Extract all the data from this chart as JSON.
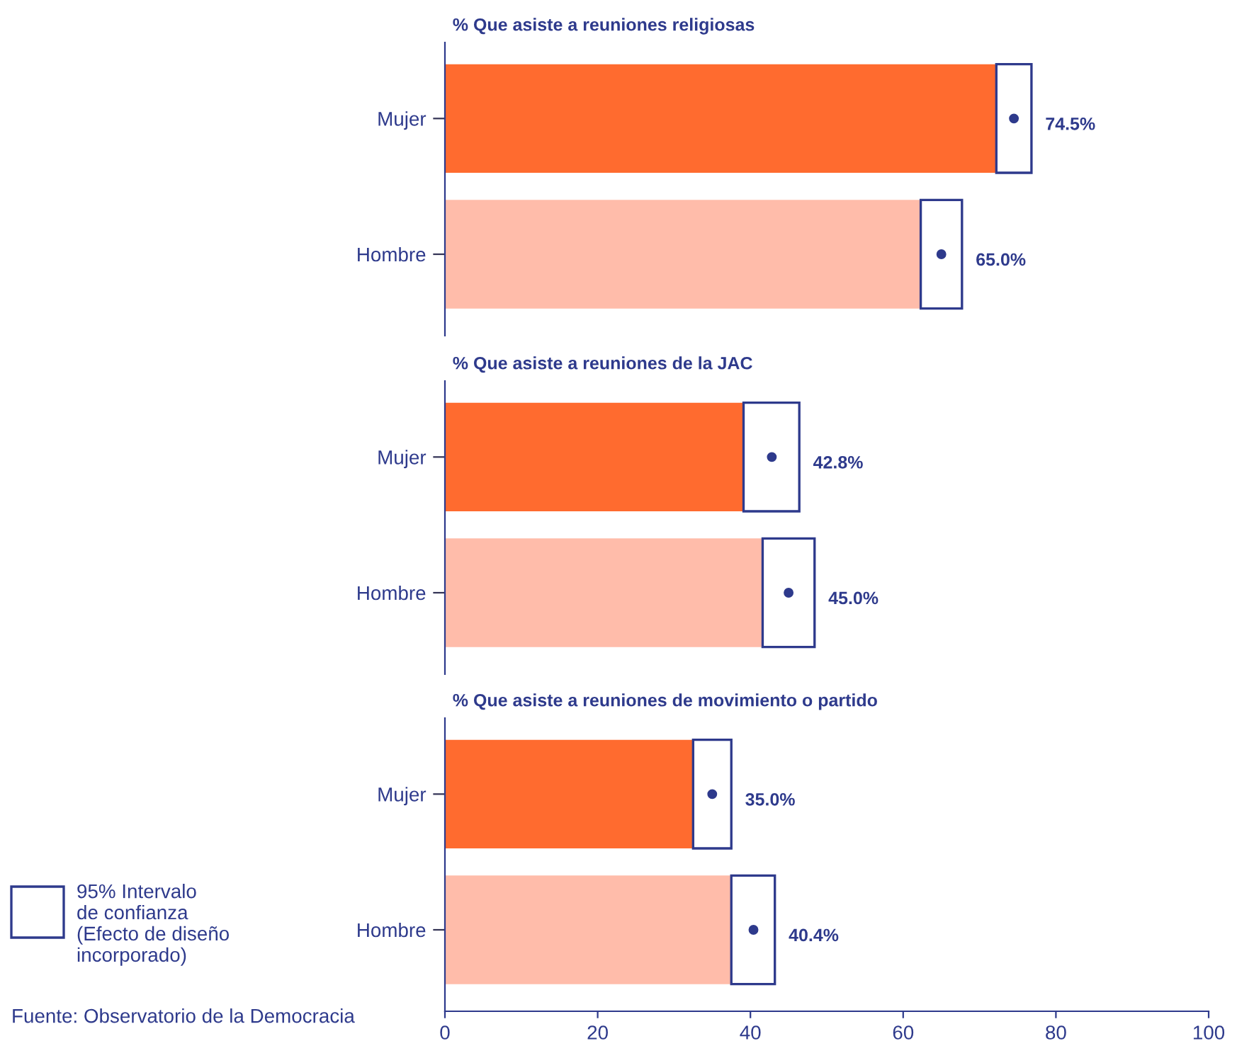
{
  "chart_data": [
    {
      "type": "bar",
      "orientation": "horizontal",
      "stacked": true,
      "title": "% Que asiste a reuniones religiosas",
      "categories": [
        "Mujer",
        "Hombre"
      ],
      "xlim": [
        0,
        100
      ],
      "xticks": [
        0,
        20,
        40,
        60,
        80,
        100
      ],
      "tick_labels": "y",
      "series": [
        {
          "colors": [
            "#ff6b2f",
            "#ffbcaa"
          ],
          "values": [
            72.2,
            62.3
          ]
        },
        {
          "color": "#ffffff",
          "values": [
            4.6,
            5.4
          ]
        },
        {
          "type": "scatter",
          "color": "#2e3a8c",
          "marker": "circle",
          "values": [
            74.5,
            65.0
          ],
          "value_labels": [
            "74.5%",
            "65.0%"
          ]
        }
      ]
    },
    {
      "type": "bar",
      "orientation": "horizontal",
      "stacked": true,
      "title": "% Que asiste a reuniones de la JAC",
      "categories": [
        "Mujer",
        "Hombre"
      ],
      "xlim": [
        0,
        100
      ],
      "xticks": [
        0,
        20,
        40,
        60,
        80,
        100
      ],
      "tick_labels": "y",
      "series": [
        {
          "colors": [
            "#ff6b2f",
            "#ffbcaa"
          ],
          "values": [
            39.1,
            41.6
          ]
        },
        {
          "color": "#ffffff",
          "values": [
            7.3,
            6.8
          ]
        },
        {
          "type": "scatter",
          "color": "#2e3a8c",
          "marker": "circle",
          "values": [
            42.8,
            45.0
          ],
          "value_labels": [
            "42.8%",
            "45.0%"
          ]
        }
      ]
    },
    {
      "type": "bar",
      "orientation": "horizontal",
      "stacked": true,
      "title": "% Que asiste a reuniones de movimiento o partido",
      "categories": [
        "Mujer",
        "Hombre"
      ],
      "xlim": [
        0,
        100
      ],
      "xticks": [
        0,
        20,
        40,
        60,
        80,
        100
      ],
      "series": [
        {
          "colors": [
            "#ff6b2f",
            "#ffbcaa"
          ],
          "values": [
            32.5,
            37.5
          ]
        },
        {
          "color": "#ffffff",
          "values": [
            5.0,
            5.7
          ]
        },
        {
          "type": "scatter",
          "color": "#2e3a8c",
          "marker": "circle",
          "values": [
            35.0,
            40.4
          ],
          "value_labels": [
            "35.0%",
            "40.4%"
          ]
        }
      ],
      "annotations": [
        "95% Intervalo\nde confianza\n(Efecto de diseño\nincorporado)",
        "Fuente: Observatorio de la Democracia"
      ]
    }
  ]
}
